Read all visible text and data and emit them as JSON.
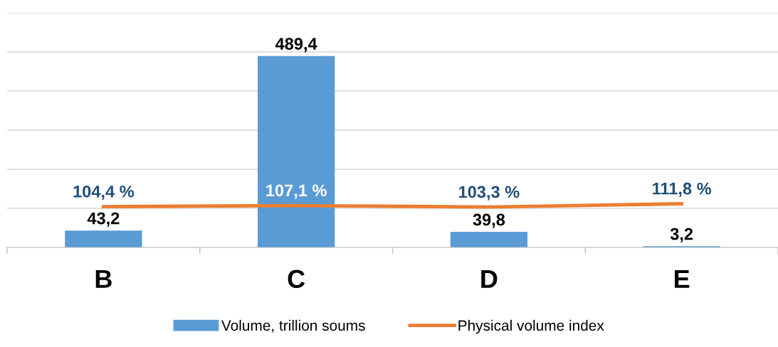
{
  "chart_data": {
    "type": "bar",
    "categories": [
      "B",
      "C",
      "D",
      "E"
    ],
    "series": [
      {
        "name": "Volume, trillion soums",
        "color": "#5b9bd5",
        "values": [
          43.2,
          489.4,
          39.8,
          3.2
        ],
        "value_labels": [
          "43,2",
          "489,4",
          "39,8",
          "3,2"
        ]
      },
      {
        "name": "Physical volume index",
        "type": "line",
        "color": "#ed7d31",
        "values": [
          104.4,
          107.1,
          103.3,
          111.8
        ],
        "value_labels": [
          "104,4 %",
          "107,1 %",
          "103,3 %",
          "111,8 %"
        ]
      }
    ],
    "ylim": [
      0,
      600
    ],
    "yticks": [
      0,
      100,
      200,
      300,
      400,
      500,
      600
    ],
    "grid": "y",
    "legend": "bottom",
    "tick_labels": "x",
    "marker": "none"
  }
}
